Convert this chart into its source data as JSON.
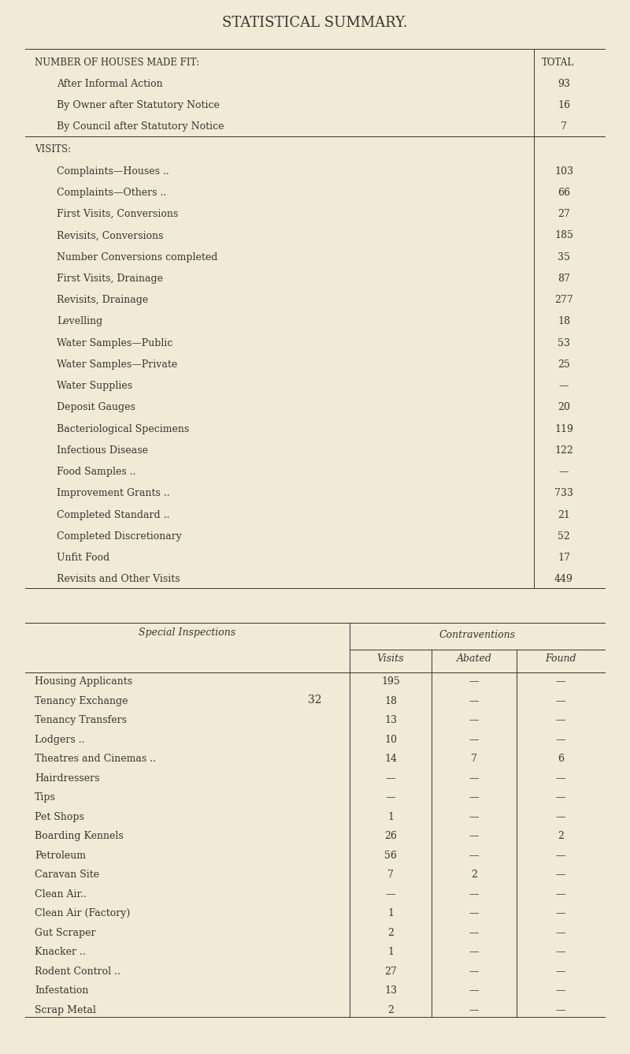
{
  "title": "STATISTICAL SUMMARY.",
  "bg_color": "#f0ead6",
  "text_color": "#3a3530",
  "page_number": "32",
  "section1_header_label": "NUMBER OF HOUSES MADE FIT:",
  "section1_header_col": "TOTAL",
  "section1_rows": [
    [
      "After Informal Action",
      "93"
    ],
    [
      "By Owner after Statutory Notice",
      "16"
    ],
    [
      "By Council after Statutory Notice",
      "7"
    ]
  ],
  "section2_header": "VISITS:",
  "section2_rows": [
    [
      "Complaints—Houses ..",
      "103"
    ],
    [
      "Complaints—Others ..",
      "66"
    ],
    [
      "First Visits, Conversions",
      "27"
    ],
    [
      "Revisits, Conversions",
      "185"
    ],
    [
      "Number Conversions completed",
      "35"
    ],
    [
      "First Visits, Drainage",
      "87"
    ],
    [
      "Revisits, Drainage",
      "277"
    ],
    [
      "Levelling",
      "18"
    ],
    [
      "Water Samples—Public",
      "53"
    ],
    [
      "Water Samples—Private",
      "25"
    ],
    [
      "Water Supplies",
      "—"
    ],
    [
      "Deposit Gauges",
      "20"
    ],
    [
      "Bacteriological Specimens",
      "119"
    ],
    [
      "Infectious Disease",
      "122"
    ],
    [
      "Food Samples ..",
      "—"
    ],
    [
      "Improvement Grants ..",
      "733"
    ],
    [
      "Completed Standard ..",
      "21"
    ],
    [
      "Completed Discretionary",
      "52"
    ],
    [
      "Unfit Food",
      "17"
    ],
    [
      "Revisits and Other Visits",
      "449"
    ]
  ],
  "section3_col_header": "Contraventions",
  "section3_left_header": "Special Inspections",
  "section3_sub_headers": [
    "Visits",
    "Abated",
    "Found"
  ],
  "section3_rows": [
    [
      "Housing Applicants",
      "195",
      "—",
      "—"
    ],
    [
      "Tenancy Exchange",
      "18",
      "—",
      "—"
    ],
    [
      "Tenancy Transfers",
      "13",
      "—",
      "—"
    ],
    [
      "Lodgers ..",
      "10",
      "—",
      "—"
    ],
    [
      "Theatres and Cinemas ..",
      "14",
      "7",
      "6"
    ],
    [
      "Hairdressers",
      "—",
      "—",
      "—"
    ],
    [
      "Tips",
      "—",
      "—",
      "—"
    ],
    [
      "Pet Shops",
      "1",
      "—",
      "—"
    ],
    [
      "Boarding Kennels",
      "26",
      "—",
      "2"
    ],
    [
      "Petroleum",
      "56",
      "—",
      "—"
    ],
    [
      "Caravan Site",
      "7",
      "2",
      "—"
    ],
    [
      "Clean Air..",
      "—",
      "—",
      "—"
    ],
    [
      "Clean Air (Factory)",
      "1",
      "—",
      "—"
    ],
    [
      "Gut Scraper",
      "2",
      "—",
      "—"
    ],
    [
      "Knacker ..",
      "1",
      "—",
      "—"
    ],
    [
      "Rodent Control ..",
      "27",
      "—",
      "—"
    ],
    [
      "Infestation",
      "13",
      "—",
      "—"
    ],
    [
      "Scrap Metal",
      "2",
      "—",
      "—"
    ]
  ]
}
